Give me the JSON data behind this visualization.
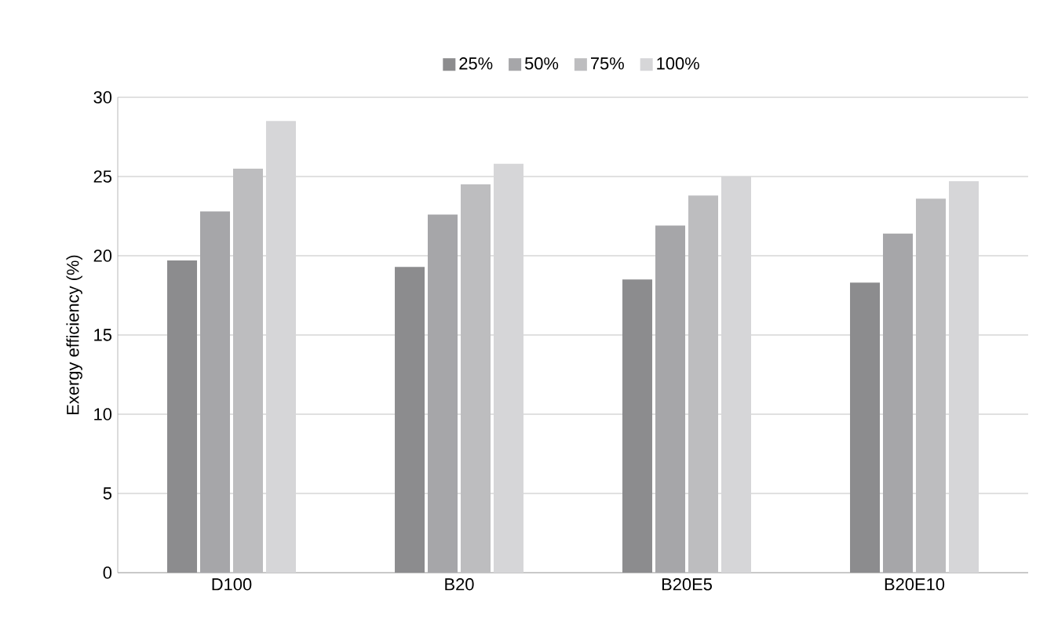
{
  "chart_data": {
    "type": "bar",
    "ylabel": "Exergy efficiency (%)",
    "categories": [
      "D100",
      "B20",
      "B20E5",
      "B20E10"
    ],
    "series": [
      {
        "name": "25%",
        "color": "#8c8c8e",
        "values": [
          19.7,
          19.3,
          18.5,
          18.3
        ]
      },
      {
        "name": "50%",
        "color": "#a6a6a9",
        "values": [
          22.8,
          22.6,
          21.9,
          21.4
        ]
      },
      {
        "name": "75%",
        "color": "#bdbdbf",
        "values": [
          25.5,
          24.5,
          23.8,
          23.6
        ]
      },
      {
        "name": "100%",
        "color": "#d6d6d8",
        "values": [
          28.5,
          25.8,
          25.0,
          24.7
        ]
      }
    ],
    "ylim": [
      0,
      30
    ],
    "yticks": [
      0,
      5,
      10,
      15,
      20,
      25,
      30
    ],
    "grid": "y",
    "legend": "top"
  }
}
